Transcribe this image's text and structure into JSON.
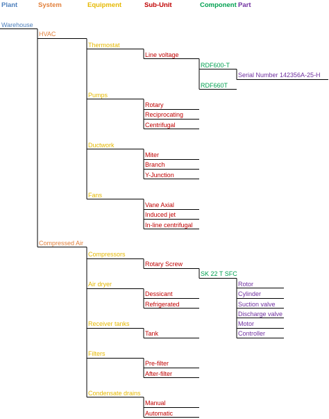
{
  "headers": {
    "plant": "Plant",
    "system": "System",
    "equipment": "Equipment",
    "subunit": "Sub-Unit",
    "component": "Component",
    "part": "Part"
  },
  "colors": {
    "plant": "#4f81bd",
    "system": "#e2803c",
    "equipment": "#e6b800",
    "subunit": "#c00000",
    "component": "#00a050",
    "part": "#7030a0",
    "line": "#000000"
  },
  "tree": {
    "plant": "Warehouse",
    "systems": {
      "hvac": {
        "label": "HVAC",
        "thermostat": "Thermostat",
        "line_voltage": "Line voltage",
        "rdf600": "RDF600-T",
        "serial": "Serial Number 142356A-25-H",
        "rdf660": "RDF660T",
        "pumps": "Pumps",
        "rotary": "Rotary",
        "reciprocating": "Reciprocating",
        "centrifugal": "Centrifugal",
        "ductwork": "Ductwork",
        "miter": "Miter",
        "branch": "Branch",
        "y_junction": "Y-Junction",
        "fans": "Fans",
        "vane_axial": "Vane Axial",
        "induced_jet": "Induced jet",
        "inline_centrifugal": "In-line centrifugal"
      },
      "air": {
        "label": "Compressed Air",
        "compressors": "Compressors",
        "rotary_screw": "Rotary Screw",
        "sk22": "SK 22 T SFC",
        "rotor": "Rotor",
        "cylinder": "Cylinder",
        "suction_valve": "Suction valve",
        "discharge_valve": "Discharge valve",
        "motor": "Motor",
        "controller": "Controller",
        "air_dryer": "Air dryer",
        "dessicant": "Dessicant",
        "refrigerated": "Refrigerated",
        "receiver_tanks": "Receiver tanks",
        "tank": "Tank",
        "filters": "Filters",
        "prefilter": "Pre-filter",
        "afterfilter": "After-filter",
        "condensate_drains": "Condensate drains",
        "manual": "Manual",
        "automatic": "Automatic"
      }
    }
  }
}
